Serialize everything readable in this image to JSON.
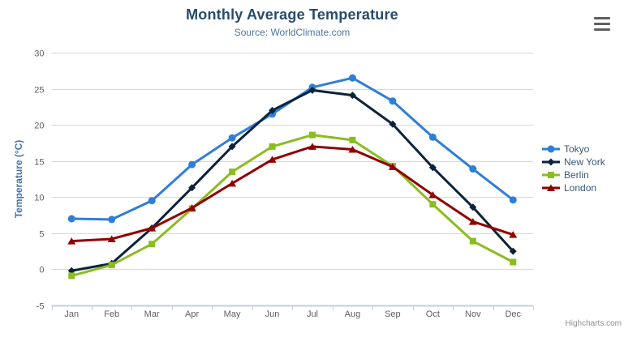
{
  "chart_data": {
    "type": "line",
    "title": "Monthly Average Temperature",
    "subtitle": "Source: WorldClimate.com",
    "categories": [
      "Jan",
      "Feb",
      "Mar",
      "Apr",
      "May",
      "Jun",
      "Jul",
      "Aug",
      "Sep",
      "Oct",
      "Nov",
      "Dec"
    ],
    "xlabel": "",
    "ylabel": "Temperature (°C)",
    "ylim": [
      -5,
      30
    ],
    "yticks": [
      -5,
      0,
      5,
      10,
      15,
      20,
      25,
      30
    ],
    "grid": true,
    "legend_position": "right",
    "series": [
      {
        "name": "Tokyo",
        "color": "#2f7ed8",
        "marker": "circle",
        "values": [
          7.0,
          6.9,
          9.5,
          14.5,
          18.2,
          21.5,
          25.2,
          26.5,
          23.3,
          18.3,
          13.9,
          9.6
        ]
      },
      {
        "name": "New York",
        "color": "#0d233a",
        "marker": "diamond",
        "values": [
          -0.2,
          0.8,
          5.7,
          11.3,
          17.0,
          22.0,
          24.8,
          24.1,
          20.1,
          14.1,
          8.6,
          2.5
        ]
      },
      {
        "name": "Berlin",
        "color": "#8bbc21",
        "marker": "square",
        "values": [
          -0.9,
          0.6,
          3.5,
          8.4,
          13.5,
          17.0,
          18.6,
          17.9,
          14.3,
          9.0,
          3.9,
          1.0
        ]
      },
      {
        "name": "London",
        "color": "#910000",
        "marker": "triangle",
        "values": [
          3.9,
          4.2,
          5.7,
          8.5,
          11.9,
          15.2,
          17.0,
          16.6,
          14.2,
          10.3,
          6.6,
          4.8
        ]
      }
    ]
  },
  "credits": "Highcharts.com",
  "export_menu_icon": "hamburger-icon",
  "colors": {
    "title": "#274b6d",
    "subtitle": "#4d759e",
    "axis_label": "#606060",
    "axis_title": "#4572a7",
    "grid_line": "#d8d8d8",
    "axis_line": "#c0d0e0",
    "legend_text": "#3e576f",
    "credits_text": "#909090",
    "export_icon": "#606060"
  }
}
